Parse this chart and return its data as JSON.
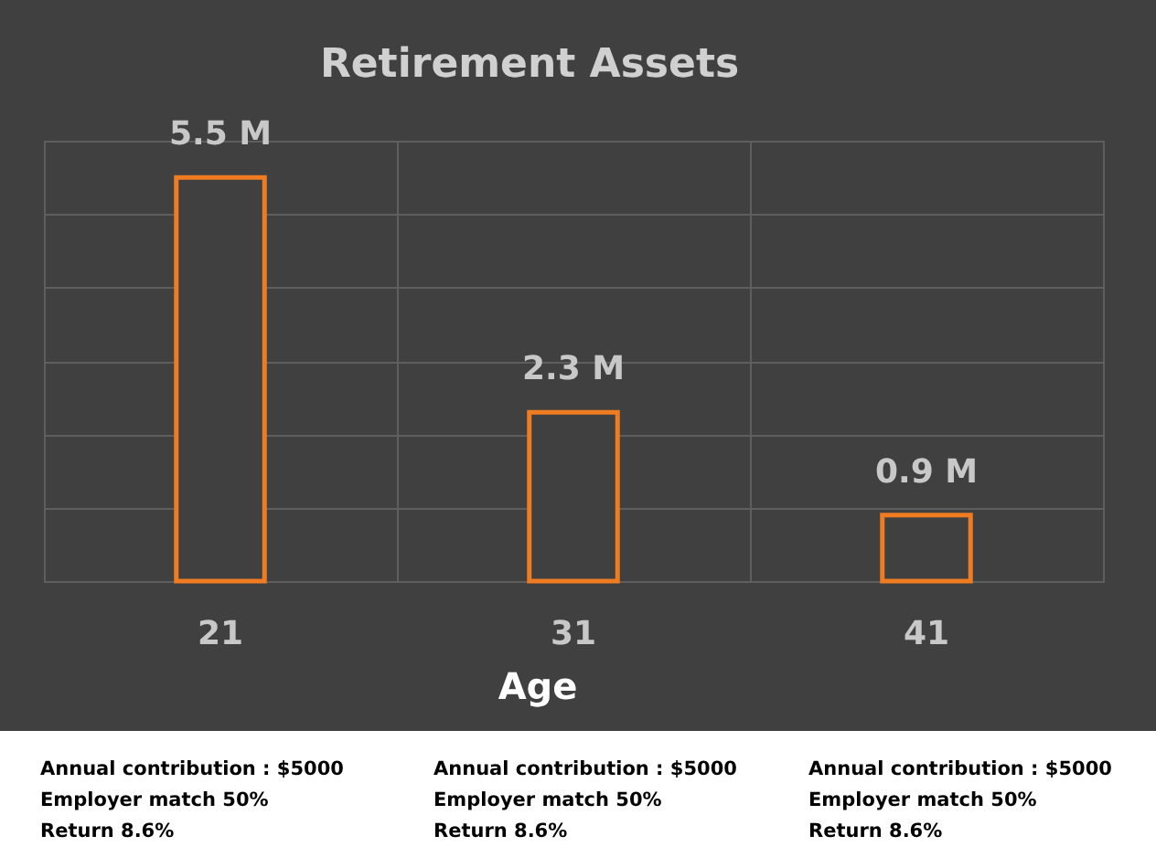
{
  "chart_data": {
    "type": "bar",
    "title": "Retirement Assets",
    "xlabel": "Age",
    "categories": [
      "21",
      "31",
      "41"
    ],
    "values": [
      5.5,
      2.3,
      0.9
    ],
    "value_labels": [
      "5.5 M",
      "2.3 M",
      "0.9 M"
    ],
    "color": "#f07c22",
    "ylim": [
      0,
      6
    ],
    "yticks": [
      {
        "value": 0,
        "label": null
      },
      {
        "value": 1,
        "label": null
      },
      {
        "value": 2,
        "label": null
      },
      {
        "value": 3,
        "label": null
      },
      {
        "value": 4,
        "label": null
      },
      {
        "value": 5,
        "label": null
      },
      {
        "value": 6,
        "label": null
      }
    ],
    "tick_labels": "x",
    "grid": true,
    "annotations": [
      "Annual contribution : $5000",
      "Employer match 50%",
      "Return 8.6%",
      "Annual contribution : $5000",
      "Employer match 50%",
      "Return 8.6%",
      "Annual contribution : $5000",
      "Employer match 50%",
      "Return 8.6%"
    ]
  }
}
